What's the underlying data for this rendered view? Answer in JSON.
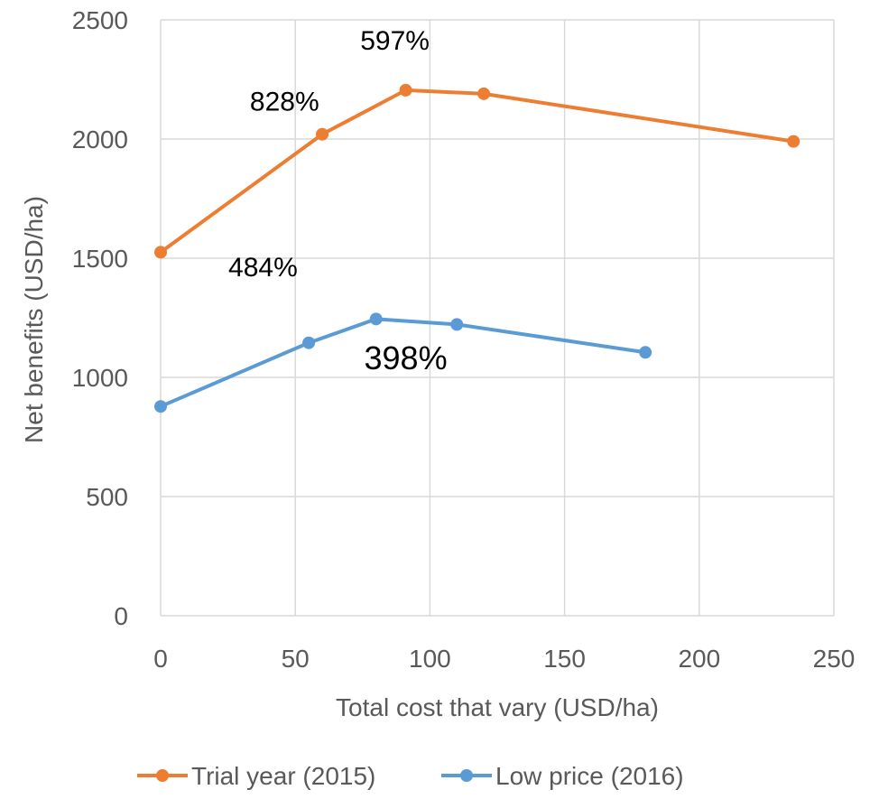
{
  "chart_data": {
    "type": "line",
    "title": "",
    "xlabel": "Total cost that vary (USD/ha)",
    "ylabel": "Net benefits (USD/ha)",
    "xlim": [
      0,
      250
    ],
    "ylim": [
      0,
      2500
    ],
    "x_ticks": [
      "0",
      "50",
      "100",
      "150",
      "200",
      "250"
    ],
    "y_ticks": [
      "0",
      "500",
      "1000",
      "1500",
      "2000",
      "2500"
    ],
    "grid": true,
    "legend_position": "bottom",
    "series": [
      {
        "name": "Trial year (2015)",
        "color": "#ED7D31",
        "points": [
          {
            "x": 0,
            "y": 1525
          },
          {
            "x": 60,
            "y": 2020
          },
          {
            "x": 91,
            "y": 2205
          },
          {
            "x": 120,
            "y": 2190
          },
          {
            "x": 235,
            "y": 1990
          }
        ]
      },
      {
        "name": "Low price (2016)",
        "color": "#5B9BD5",
        "points": [
          {
            "x": 0,
            "y": 878
          },
          {
            "x": 55,
            "y": 1145
          },
          {
            "x": 80,
            "y": 1245
          },
          {
            "x": 110,
            "y": 1222
          },
          {
            "x": 180,
            "y": 1105
          }
        ]
      }
    ],
    "annotations": [
      {
        "text": "597%",
        "x": 87,
        "y": 2375,
        "size": "normal"
      },
      {
        "text": "828%",
        "x": 46,
        "y": 2120,
        "size": "normal"
      },
      {
        "text": "484%",
        "x": 38,
        "y": 1425,
        "size": "normal"
      },
      {
        "text": "398%",
        "x": 91,
        "y": 1035,
        "size": "large"
      }
    ]
  }
}
